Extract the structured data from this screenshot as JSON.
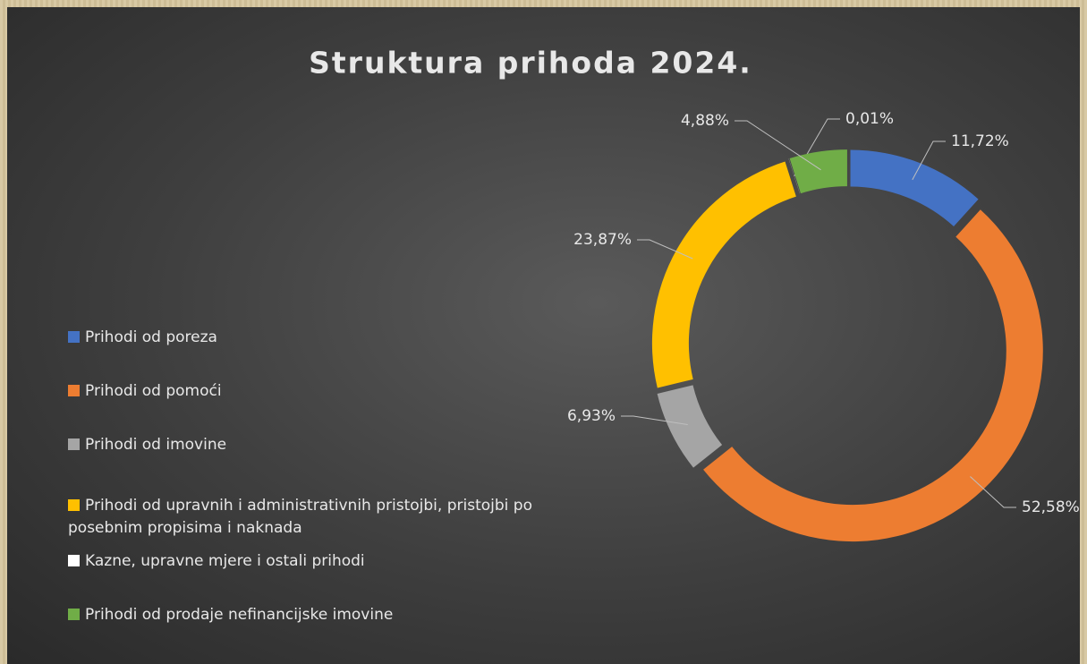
{
  "chart_data": {
    "type": "donut",
    "title": "Struktura prihoda 2024.",
    "categories": [
      "Prihodi od poreza",
      "Prihodi od pomoći",
      "Prihodi od imovine",
      "Prihodi od upravnih i administrativnih pristojbi, pristojbi po posebnim propisima i naknada",
      "Kazne, upravne mjere i ostali prihodi",
      "Prihodi od prodaje nefinancijske imovine"
    ],
    "values": [
      11.72,
      52.58,
      6.93,
      23.87,
      0.01,
      4.88
    ],
    "value_labels": [
      "11,72%",
      "52,58%",
      "6,93%",
      "23,87%",
      "0,01%",
      "4,88%"
    ],
    "colors": [
      "#4472c4",
      "#ed7d31",
      "#a5a5a5",
      "#ffc000",
      "#ffffff",
      "#70ad47"
    ],
    "legend": "left"
  }
}
